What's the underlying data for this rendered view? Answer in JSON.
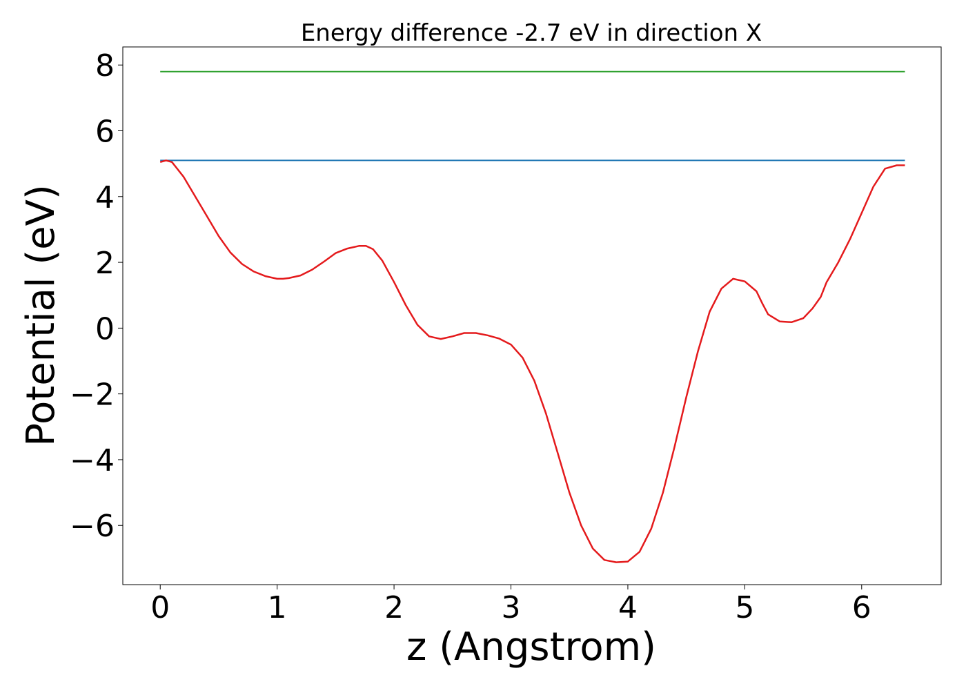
{
  "chart_data": {
    "type": "line",
    "title": "Energy difference -2.7 eV in direction X",
    "xlabel": "z (Angstrom)",
    "ylabel": "Potential (eV)",
    "xlim": [
      -0.32,
      6.68
    ],
    "ylim": [
      -7.8,
      8.55
    ],
    "x_ticks": [
      0,
      1,
      2,
      3,
      4,
      5,
      6
    ],
    "x_tick_labels": [
      "0",
      "1",
      "2",
      "3",
      "4",
      "5",
      "6"
    ],
    "y_ticks": [
      -6,
      -4,
      -2,
      0,
      2,
      4,
      6,
      8
    ],
    "y_tick_labels": [
      "−6",
      "−4",
      "−2",
      "0",
      "2",
      "4",
      "6",
      "8"
    ],
    "grid": false,
    "series": [
      {
        "color": "#2ca02c",
        "x": [
          0,
          6.37
        ],
        "y": [
          7.8,
          7.8
        ]
      },
      {
        "color": "#1f77b4",
        "x": [
          0,
          6.37
        ],
        "y": [
          5.1,
          5.1
        ]
      },
      {
        "color": "#e41a1c",
        "x": [
          0,
          0.05,
          0.1,
          0.2,
          0.3,
          0.4,
          0.5,
          0.6,
          0.7,
          0.8,
          0.9,
          1.0,
          1.05,
          1.1,
          1.2,
          1.3,
          1.4,
          1.5,
          1.6,
          1.7,
          1.76,
          1.82,
          1.9,
          2.0,
          2.1,
          2.2,
          2.3,
          2.4,
          2.5,
          2.6,
          2.7,
          2.8,
          2.9,
          3.0,
          3.1,
          3.2,
          3.3,
          3.4,
          3.5,
          3.6,
          3.7,
          3.8,
          3.9,
          4.0,
          4.1,
          4.2,
          4.3,
          4.4,
          4.5,
          4.6,
          4.7,
          4.8,
          4.9,
          5.0,
          5.1,
          5.15,
          5.2,
          5.3,
          5.4,
          5.5,
          5.58,
          5.65,
          5.7,
          5.8,
          5.9,
          6.0,
          6.1,
          6.2,
          6.3,
          6.37
        ],
        "y": [
          5.05,
          5.1,
          5.05,
          4.6,
          4.0,
          3.4,
          2.8,
          2.3,
          1.95,
          1.72,
          1.58,
          1.5,
          1.5,
          1.52,
          1.6,
          1.78,
          2.02,
          2.28,
          2.42,
          2.5,
          2.5,
          2.4,
          2.05,
          1.4,
          0.7,
          0.1,
          -0.25,
          -0.33,
          -0.25,
          -0.15,
          -0.15,
          -0.22,
          -0.32,
          -0.5,
          -0.9,
          -1.6,
          -2.6,
          -3.8,
          -5.0,
          -6.0,
          -6.7,
          -7.05,
          -7.12,
          -7.1,
          -6.8,
          -6.1,
          -5.0,
          -3.6,
          -2.1,
          -0.7,
          0.5,
          1.2,
          1.5,
          1.42,
          1.12,
          0.75,
          0.42,
          0.2,
          0.18,
          0.3,
          0.6,
          0.95,
          1.4,
          2.0,
          2.7,
          3.5,
          4.3,
          4.85,
          4.95,
          4.95
        ]
      }
    ]
  }
}
